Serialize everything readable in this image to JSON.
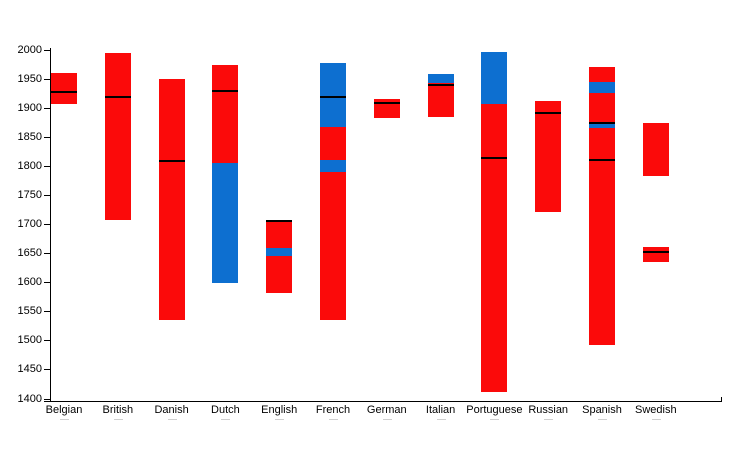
{
  "chart": {
    "background": "#ffffff"
  },
  "chart_data": {
    "type": "bar",
    "subtype": "floating-stacked-range-bars",
    "title": "",
    "xlabel": "",
    "ylabel": "",
    "ylim": [
      1400,
      2000
    ],
    "yticks": [
      2000,
      1950,
      1900,
      1850,
      1800,
      1750,
      1700,
      1650,
      1600,
      1550,
      1500,
      1450,
      1400
    ],
    "grid": false,
    "legend": false,
    "colors": {
      "red": "#fb0a0a",
      "blue": "#0d6fd0",
      "marker": "#000000",
      "axis": "#000000",
      "minor_tick": "#cfcfcf"
    },
    "categories": [
      "Belgian",
      "British",
      "Danish",
      "Dutch",
      "English",
      "French",
      "German",
      "Italian",
      "Portuguese",
      "Russian",
      "Spanish",
      "Swedish"
    ],
    "bars": [
      {
        "category": "Belgian",
        "segments": [
          {
            "from": 1908,
            "to": 1960,
            "color": "red"
          }
        ],
        "markers": [
          1928
        ]
      },
      {
        "category": "British",
        "segments": [
          {
            "from": 1708,
            "to": 1995,
            "color": "red"
          }
        ],
        "markers": [
          1920
        ]
      },
      {
        "category": "Danish",
        "segments": [
          {
            "from": 1535,
            "to": 1950,
            "color": "red"
          }
        ],
        "markers": [
          1809
        ]
      },
      {
        "category": "Dutch",
        "segments": [
          {
            "from": 1600,
            "to": 1805,
            "color": "blue"
          },
          {
            "from": 1805,
            "to": 1974,
            "color": "red"
          }
        ],
        "markers": [
          1930
        ]
      },
      {
        "category": "English",
        "segments": [
          {
            "from": 1583,
            "to": 1645,
            "color": "red"
          },
          {
            "from": 1645,
            "to": 1660,
            "color": "blue"
          },
          {
            "from": 1660,
            "to": 1706,
            "color": "red"
          }
        ],
        "markers": [
          1706
        ]
      },
      {
        "category": "French",
        "segments": [
          {
            "from": 1535,
            "to": 1790,
            "color": "red"
          },
          {
            "from": 1790,
            "to": 1811,
            "color": "blue"
          },
          {
            "from": 1811,
            "to": 1868,
            "color": "red"
          },
          {
            "from": 1868,
            "to": 1978,
            "color": "blue"
          }
        ],
        "markers": [
          1920
        ]
      },
      {
        "category": "German",
        "segments": [
          {
            "from": 1883,
            "to": 1916,
            "color": "red"
          }
        ],
        "markers": [
          1909
        ]
      },
      {
        "category": "Italian",
        "segments": [
          {
            "from": 1885,
            "to": 1943,
            "color": "red"
          },
          {
            "from": 1943,
            "to": 1958,
            "color": "blue"
          }
        ],
        "markers": [
          1940
        ]
      },
      {
        "category": "Portuguese",
        "segments": [
          {
            "from": 1412,
            "to": 1907,
            "color": "red"
          },
          {
            "from": 1907,
            "to": 1997,
            "color": "blue"
          }
        ],
        "markers": [
          1815
        ]
      },
      {
        "category": "Russian",
        "segments": [
          {
            "from": 1721,
            "to": 1912,
            "color": "red"
          }
        ],
        "markers": [
          1892
        ]
      },
      {
        "category": "Spanish",
        "segments": [
          {
            "from": 1493,
            "to": 1866,
            "color": "red"
          },
          {
            "from": 1866,
            "to": 1877,
            "color": "blue"
          },
          {
            "from": 1877,
            "to": 1926,
            "color": "red"
          },
          {
            "from": 1926,
            "to": 1945,
            "color": "blue"
          },
          {
            "from": 1945,
            "to": 1971,
            "color": "red"
          }
        ],
        "markers": [
          1875,
          1811
        ]
      },
      {
        "category": "Swedish",
        "segments": [
          {
            "from": 1636,
            "to": 1661,
            "color": "red"
          },
          {
            "from": 1783,
            "to": 1874,
            "color": "red"
          }
        ],
        "markers": [
          1653
        ]
      }
    ]
  }
}
